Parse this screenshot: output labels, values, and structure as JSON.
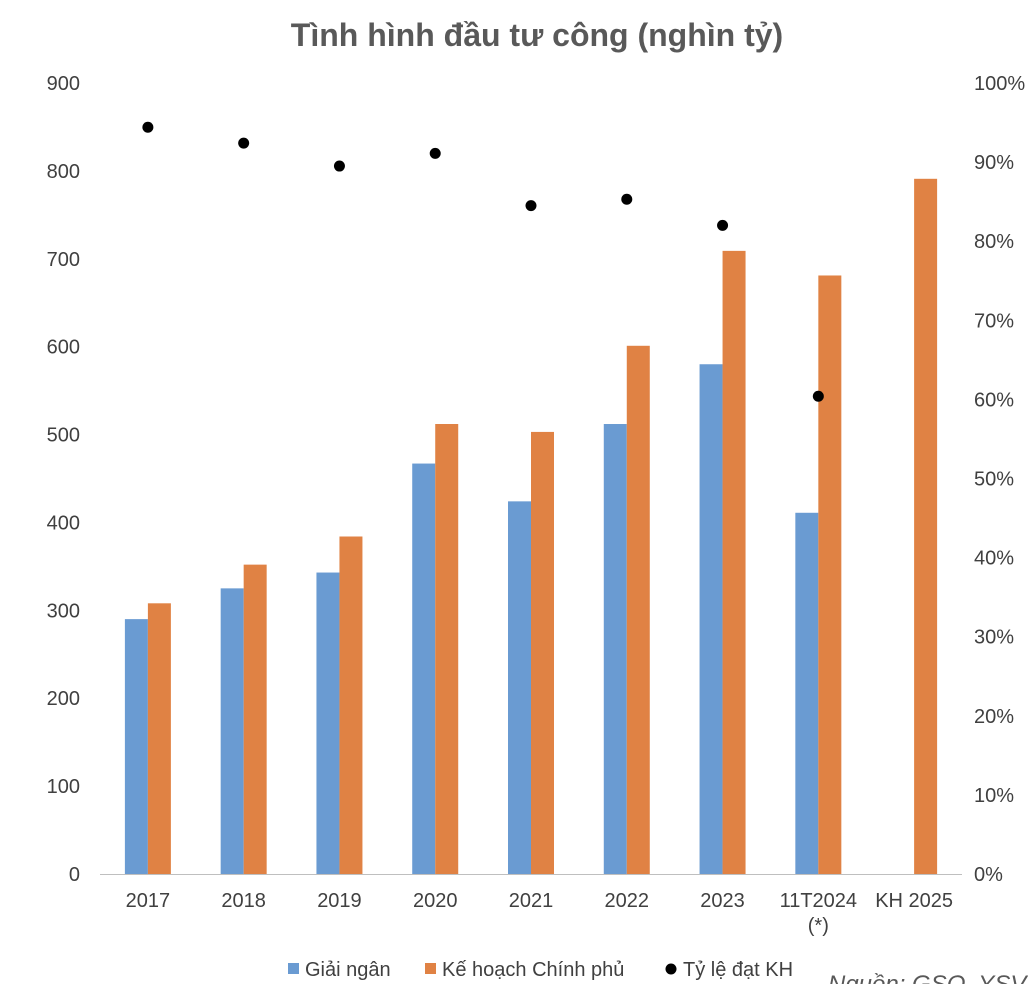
{
  "chart_data": {
    "type": "bar",
    "title": "Tình hình đầu tư công (nghìn tỷ)",
    "categories": [
      "2017",
      "2018",
      "2019",
      "2020",
      "2021",
      "2022",
      "2023",
      "11T2024",
      "KH 2025"
    ],
    "category_sublabels": [
      "",
      "",
      "",
      "",
      "",
      "",
      "",
      "(*)",
      ""
    ],
    "series": [
      {
        "name": "Giải ngân",
        "kind": "bar",
        "axis": "left",
        "color": "#6a9bd2",
        "values": [
          290,
          325,
          343,
          467,
          424,
          512,
          580,
          411,
          null
        ]
      },
      {
        "name": "Kế hoạch Chính phủ",
        "kind": "bar",
        "axis": "left",
        "color": "#e08244",
        "values": [
          308,
          352,
          384,
          512,
          503,
          601,
          709,
          681,
          791
        ]
      },
      {
        "name": "Tỷ lệ đạt KH",
        "kind": "scatter",
        "axis": "right",
        "color": "#000000",
        "values": [
          0.944,
          0.924,
          0.895,
          0.911,
          0.845,
          0.853,
          0.82,
          0.604,
          null
        ]
      }
    ],
    "y_left": {
      "min": 0,
      "max": 900,
      "ticks": [
        0,
        100,
        200,
        300,
        400,
        500,
        600,
        700,
        800,
        900
      ],
      "tick_labels": [
        "0",
        "100",
        "200",
        "300",
        "400",
        "500",
        "600",
        "700",
        "800",
        "900"
      ]
    },
    "y_right": {
      "min": 0,
      "max": 1,
      "ticks": [
        0,
        0.1,
        0.2,
        0.3,
        0.4,
        0.5,
        0.6,
        0.7,
        0.8,
        0.9,
        1.0
      ],
      "tick_labels": [
        "0%",
        "10%",
        "20%",
        "30%",
        "40%",
        "50%",
        "60%",
        "70%",
        "80%",
        "90%",
        "100%"
      ]
    },
    "legend_position": "bottom",
    "grid": false,
    "source_note": "Nguồn: GSO, YSV"
  }
}
